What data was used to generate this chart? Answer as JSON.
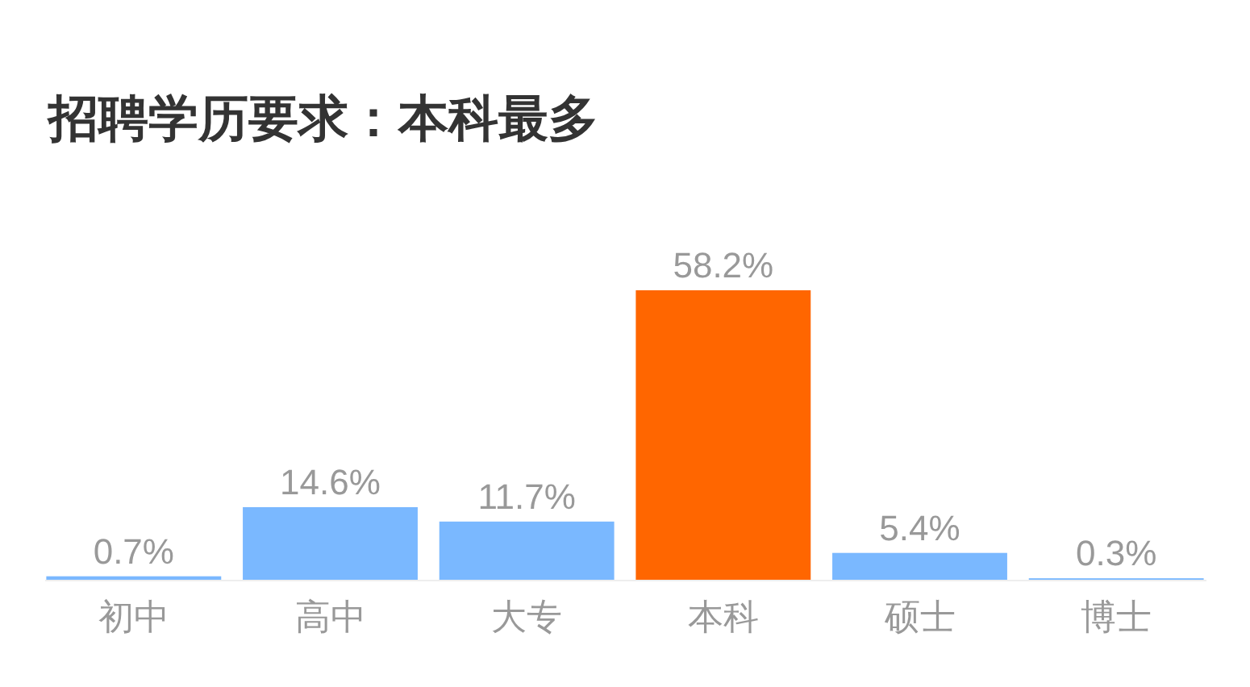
{
  "chart_data": {
    "type": "bar",
    "title": "招聘学历要求：本科最多",
    "categories": [
      "初中",
      "高中",
      "大专",
      "本科",
      "硕士",
      "博士"
    ],
    "values": [
      0.7,
      14.6,
      11.7,
      58.2,
      5.4,
      0.3
    ],
    "colors": [
      "#7ab8ff",
      "#7ab8ff",
      "#7ab8ff",
      "#ff6600",
      "#7ab8ff",
      "#7ab8ff"
    ],
    "value_labels": [
      "0.7%",
      "14.6%",
      "11.7%",
      "58.2%",
      "5.4%",
      "0.3%"
    ]
  }
}
